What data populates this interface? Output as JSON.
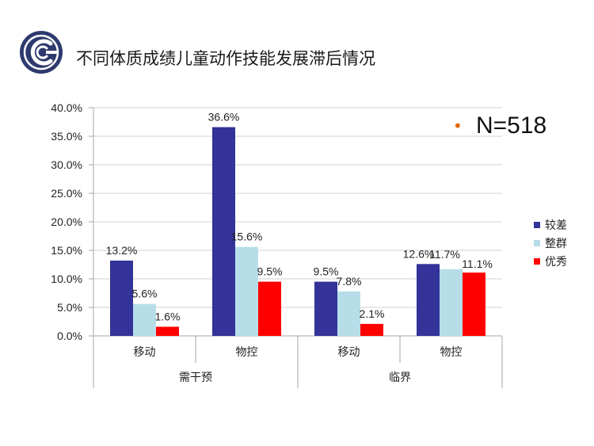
{
  "slide": {
    "title": "不同体质成绩儿童动作技能发展滞后情况"
  },
  "colors": {
    "series": [
      "#333399",
      "#B7DEE8",
      "#FF0000"
    ],
    "bullet": "#E36C09",
    "logo": "#2E3A6E"
  },
  "chart_data": {
    "type": "bar",
    "title": "",
    "annotation": {
      "bullet": "•",
      "text": "N=518"
    },
    "xlabel": "",
    "ylabel": "",
    "ylim": [
      0,
      0.4
    ],
    "yticks": [
      0,
      0.05,
      0.1,
      0.15,
      0.2,
      0.25,
      0.3,
      0.35,
      0.4
    ],
    "ytick_labels": [
      "0.0%",
      "5.0%",
      "10.0%",
      "15.0%",
      "20.0%",
      "25.0%",
      "30.0%",
      "35.0%",
      "40.0%"
    ],
    "grid": true,
    "legend_position": "right",
    "categories": [
      "移动",
      "物控",
      "移动",
      "物控"
    ],
    "groups": [
      {
        "label": "需干预",
        "span": [
          0,
          1
        ]
      },
      {
        "label": "临界",
        "span": [
          2,
          3
        ]
      }
    ],
    "series": [
      {
        "name": "较差",
        "values": [
          0.132,
          0.366,
          0.095,
          0.126
        ],
        "labels": [
          "13.2%",
          "36.6%",
          "9.5%",
          "12.6%"
        ]
      },
      {
        "name": "整群",
        "values": [
          0.056,
          0.156,
          0.078,
          0.117
        ],
        "labels": [
          "5.6%",
          "15.6%",
          "7.8%",
          "11.7%"
        ]
      },
      {
        "name": "优秀",
        "values": [
          0.016,
          0.095,
          0.021,
          0.111
        ],
        "labels": [
          "1.6%",
          "9.5%",
          "2.1%",
          "11.1%"
        ]
      }
    ]
  }
}
